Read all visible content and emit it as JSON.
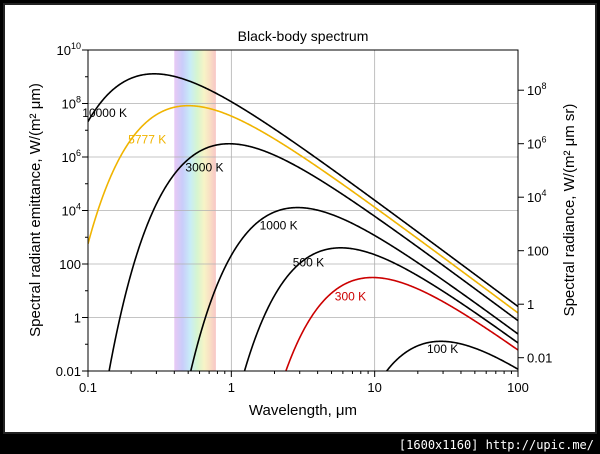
{
  "footer_text": "[1600x1160] http://upic.me/",
  "chart_data": {
    "type": "line",
    "title": "Black-body spectrum",
    "xlabel": "Wavelength, μm",
    "ylabel_left": "Spectral radiant emittance, W/(m² μm)",
    "ylabel_right": "Spectral radiance, W/(m² μm sr)",
    "x_scale": "log",
    "y_scale": "log",
    "xlim": [
      0.1,
      100
    ],
    "ylim_left": [
      0.01,
      10000000000
    ],
    "ylim_right_note": "right axis = left axis / π",
    "grid": true,
    "x_ticks": [
      {
        "value": 0.1,
        "label": "0.1"
      },
      {
        "value": 1,
        "label": "1"
      },
      {
        "value": 10,
        "label": "10"
      },
      {
        "value": 100,
        "label": "100"
      }
    ],
    "y_ticks_left": [
      {
        "value": 0.01,
        "base": "0.01",
        "exp": ""
      },
      {
        "value": 1,
        "base": "1",
        "exp": ""
      },
      {
        "value": 100,
        "base": "100",
        "exp": ""
      },
      {
        "value": 10000,
        "base": "10",
        "exp": "4"
      },
      {
        "value": 1000000,
        "base": "10",
        "exp": "6"
      },
      {
        "value": 100000000,
        "base": "10",
        "exp": "8"
      },
      {
        "value": 10000000000,
        "base": "10",
        "exp": "10"
      }
    ],
    "y_ticks_right": [
      {
        "value": 0.01,
        "base": "0.01",
        "exp": ""
      },
      {
        "value": 1,
        "base": "1",
        "exp": ""
      },
      {
        "value": 100,
        "base": "100",
        "exp": ""
      },
      {
        "value": 10000,
        "base": "10",
        "exp": "4"
      },
      {
        "value": 1000000,
        "base": "10",
        "exp": "6"
      },
      {
        "value": 100000000,
        "base": "10",
        "exp": "8"
      }
    ],
    "visible_band_um": [
      0.4,
      0.78
    ],
    "series": [
      {
        "name": "10000 K",
        "temperature": 10000,
        "color": "#000000",
        "peak": {
          "x": 0.29,
          "y": 1000000000
        }
      },
      {
        "name": "5777 K",
        "temperature": 5777,
        "color": "#f0b400",
        "peak": {
          "x": 0.5,
          "y": 83000000
        }
      },
      {
        "name": "3000 K",
        "temperature": 3000,
        "color": "#000000",
        "peak": {
          "x": 0.97,
          "y": 3200000
        }
      },
      {
        "name": "1000 K",
        "temperature": 1000,
        "color": "#000000",
        "peak": {
          "x": 2.9,
          "y": 13000
        }
      },
      {
        "name": "500 K",
        "temperature": 500,
        "color": "#000000",
        "peak": {
          "x": 5.8,
          "y": 820
        }
      },
      {
        "name": "300 K",
        "temperature": 300,
        "color": "#cc0000",
        "peak": {
          "x": 9.7,
          "y": 41
        }
      },
      {
        "name": "100 K",
        "temperature": 100,
        "color": "#000000",
        "peak": {
          "x": 29,
          "y": 0.13
        }
      }
    ]
  }
}
